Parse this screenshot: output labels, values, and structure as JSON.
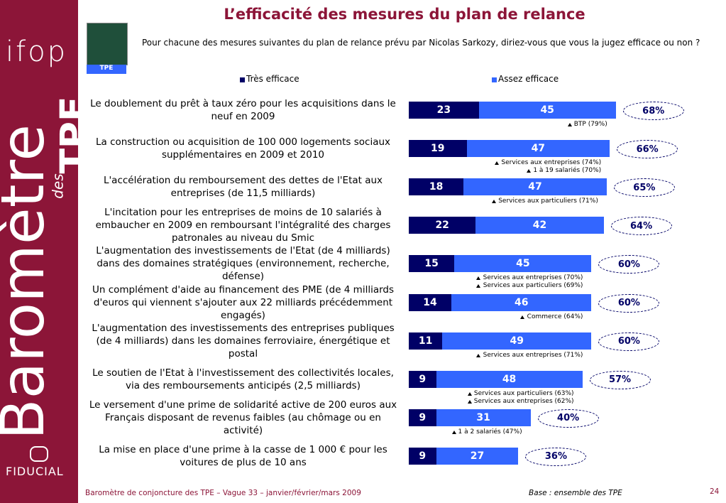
{
  "sidebar": {
    "logo": "ifop",
    "brand_word": "Baromètre",
    "brand_small": "des",
    "brand_big": "TPE",
    "partner": "FIDUCIAL"
  },
  "header": {
    "title": "L’efficacité des mesures du plan de relance",
    "question": "Pour chacune des mesures suivantes du plan de relance prévu par Nicolas Sarkozy, diriez-vous que vous la jugez efficace ou non ?",
    "badge": "TPE"
  },
  "chart_data": {
    "type": "bar",
    "orientation": "horizontal",
    "stacked": true,
    "categories": [
      "Le doublement du prêt à taux zéro pour les acquisitions dans le neuf en 2009",
      "La construction ou acquisition de 100 000 logements sociaux supplémentaires en 2009 et 2010",
      "L'accélération du remboursement des dettes de l'Etat aux entreprises (de 11,5 milliards)",
      "L'incitation pour les entreprises de moins de 10 salariés à embaucher en 2009 en remboursant l'intégralité des charges patronales au niveau du Smic",
      "L'augmentation des investissements de l'Etat (de 4 milliards) dans des domaines stratégiques (environnement, recherche, défense)",
      "Un complément d'aide au financement des PME (de 4 milliards d'euros qui viennent s'ajouter aux 22 milliards précédemment engagés)",
      "L'augmentation des investissements des entreprises publiques (de 4 milliards) dans les domaines ferroviaire, énergétique et postal",
      "Le soutien de l'Etat à l'investissement des collectivités locales, via des remboursements anticipés (2,5 milliards)",
      "Le versement d'une prime de solidarité active de 200 euros aux Français disposant de revenus faibles (au chômage ou en activité)",
      "La mise en place d'une prime à la casse de 1 000 € pour les voitures de plus de 10 ans"
    ],
    "series": [
      {
        "name": "Très efficace",
        "color": "#000066",
        "values": [
          23,
          19,
          18,
          22,
          15,
          14,
          11,
          9,
          9,
          9
        ]
      },
      {
        "name": "Assez efficace",
        "color": "#3366ff",
        "values": [
          45,
          47,
          47,
          42,
          45,
          46,
          49,
          48,
          31,
          27
        ]
      }
    ],
    "totals": {
      "values": [
        68,
        66,
        65,
        64,
        60,
        60,
        60,
        57,
        40,
        36
      ],
      "value_labels": [
        "68%",
        "66%",
        "65%",
        "64%",
        "60%",
        "60%",
        "60%",
        "57%",
        "40%",
        "36%"
      ]
    },
    "annotations": [
      [
        "BTP (79%)"
      ],
      [
        "Services aux entreprises (74%)",
        "1 à 19 salariés (70%)"
      ],
      [
        "Services aux particuliers (71%)"
      ],
      [],
      [
        "Services aux entreprises (70%)",
        "Services aux particuliers (69%)"
      ],
      [
        "Commerce (64%)"
      ],
      [
        "Services aux entreprises (71%)"
      ],
      [
        "Services aux particuliers (63%)",
        "Services aux entreprises (62%)"
      ],
      [
        "1 à 2 salariés (47%)"
      ],
      []
    ]
  },
  "footer": {
    "source": "Baromètre de conjoncture des TPE – Vague 33 – janvier/février/mars 2009",
    "base": "Base : ensemble des TPE",
    "page": "24"
  }
}
